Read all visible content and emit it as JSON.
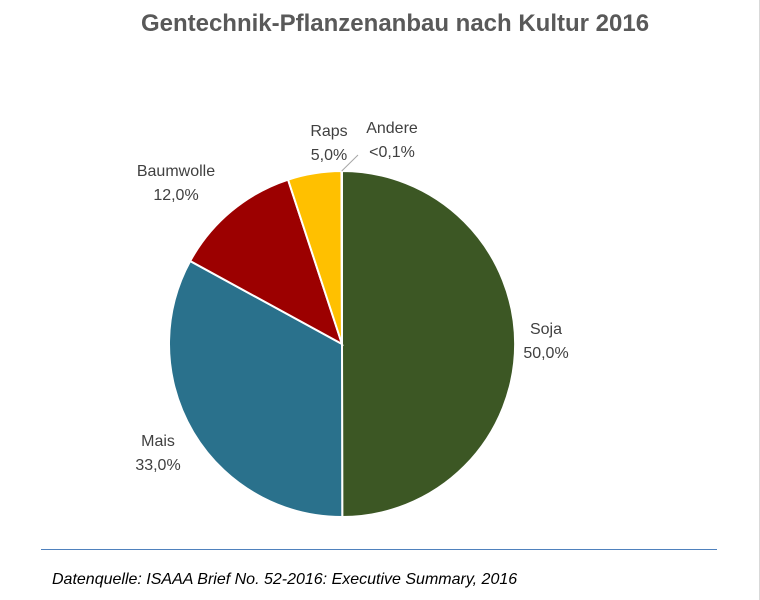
{
  "chart_data": {
    "type": "pie",
    "title": "Gentechnik-Pflanzenanbau nach Kultur 2016",
    "start_angle_deg": 0,
    "direction": "clockwise",
    "slices": [
      {
        "name": "Soja",
        "value": 50.0,
        "label": "50,0%",
        "color": "#3c5724"
      },
      {
        "name": "Mais",
        "value": 33.0,
        "label": "33,0%",
        "color": "#2a718c"
      },
      {
        "name": "Baumwolle",
        "value": 12.0,
        "label": "12,0%",
        "color": "#9c0000"
      },
      {
        "name": "Raps",
        "value": 5.0,
        "label": "5,0%",
        "color": "#ffc000"
      },
      {
        "name": "Andere",
        "value": 0.05,
        "label": "<0,1%",
        "color": "#d9d9d9"
      }
    ],
    "legend": "none",
    "data_labels": "outside"
  },
  "footer": {
    "source": "Datenquelle: ISAAA Brief No. 52-2016: Executive Summary, 2016"
  }
}
